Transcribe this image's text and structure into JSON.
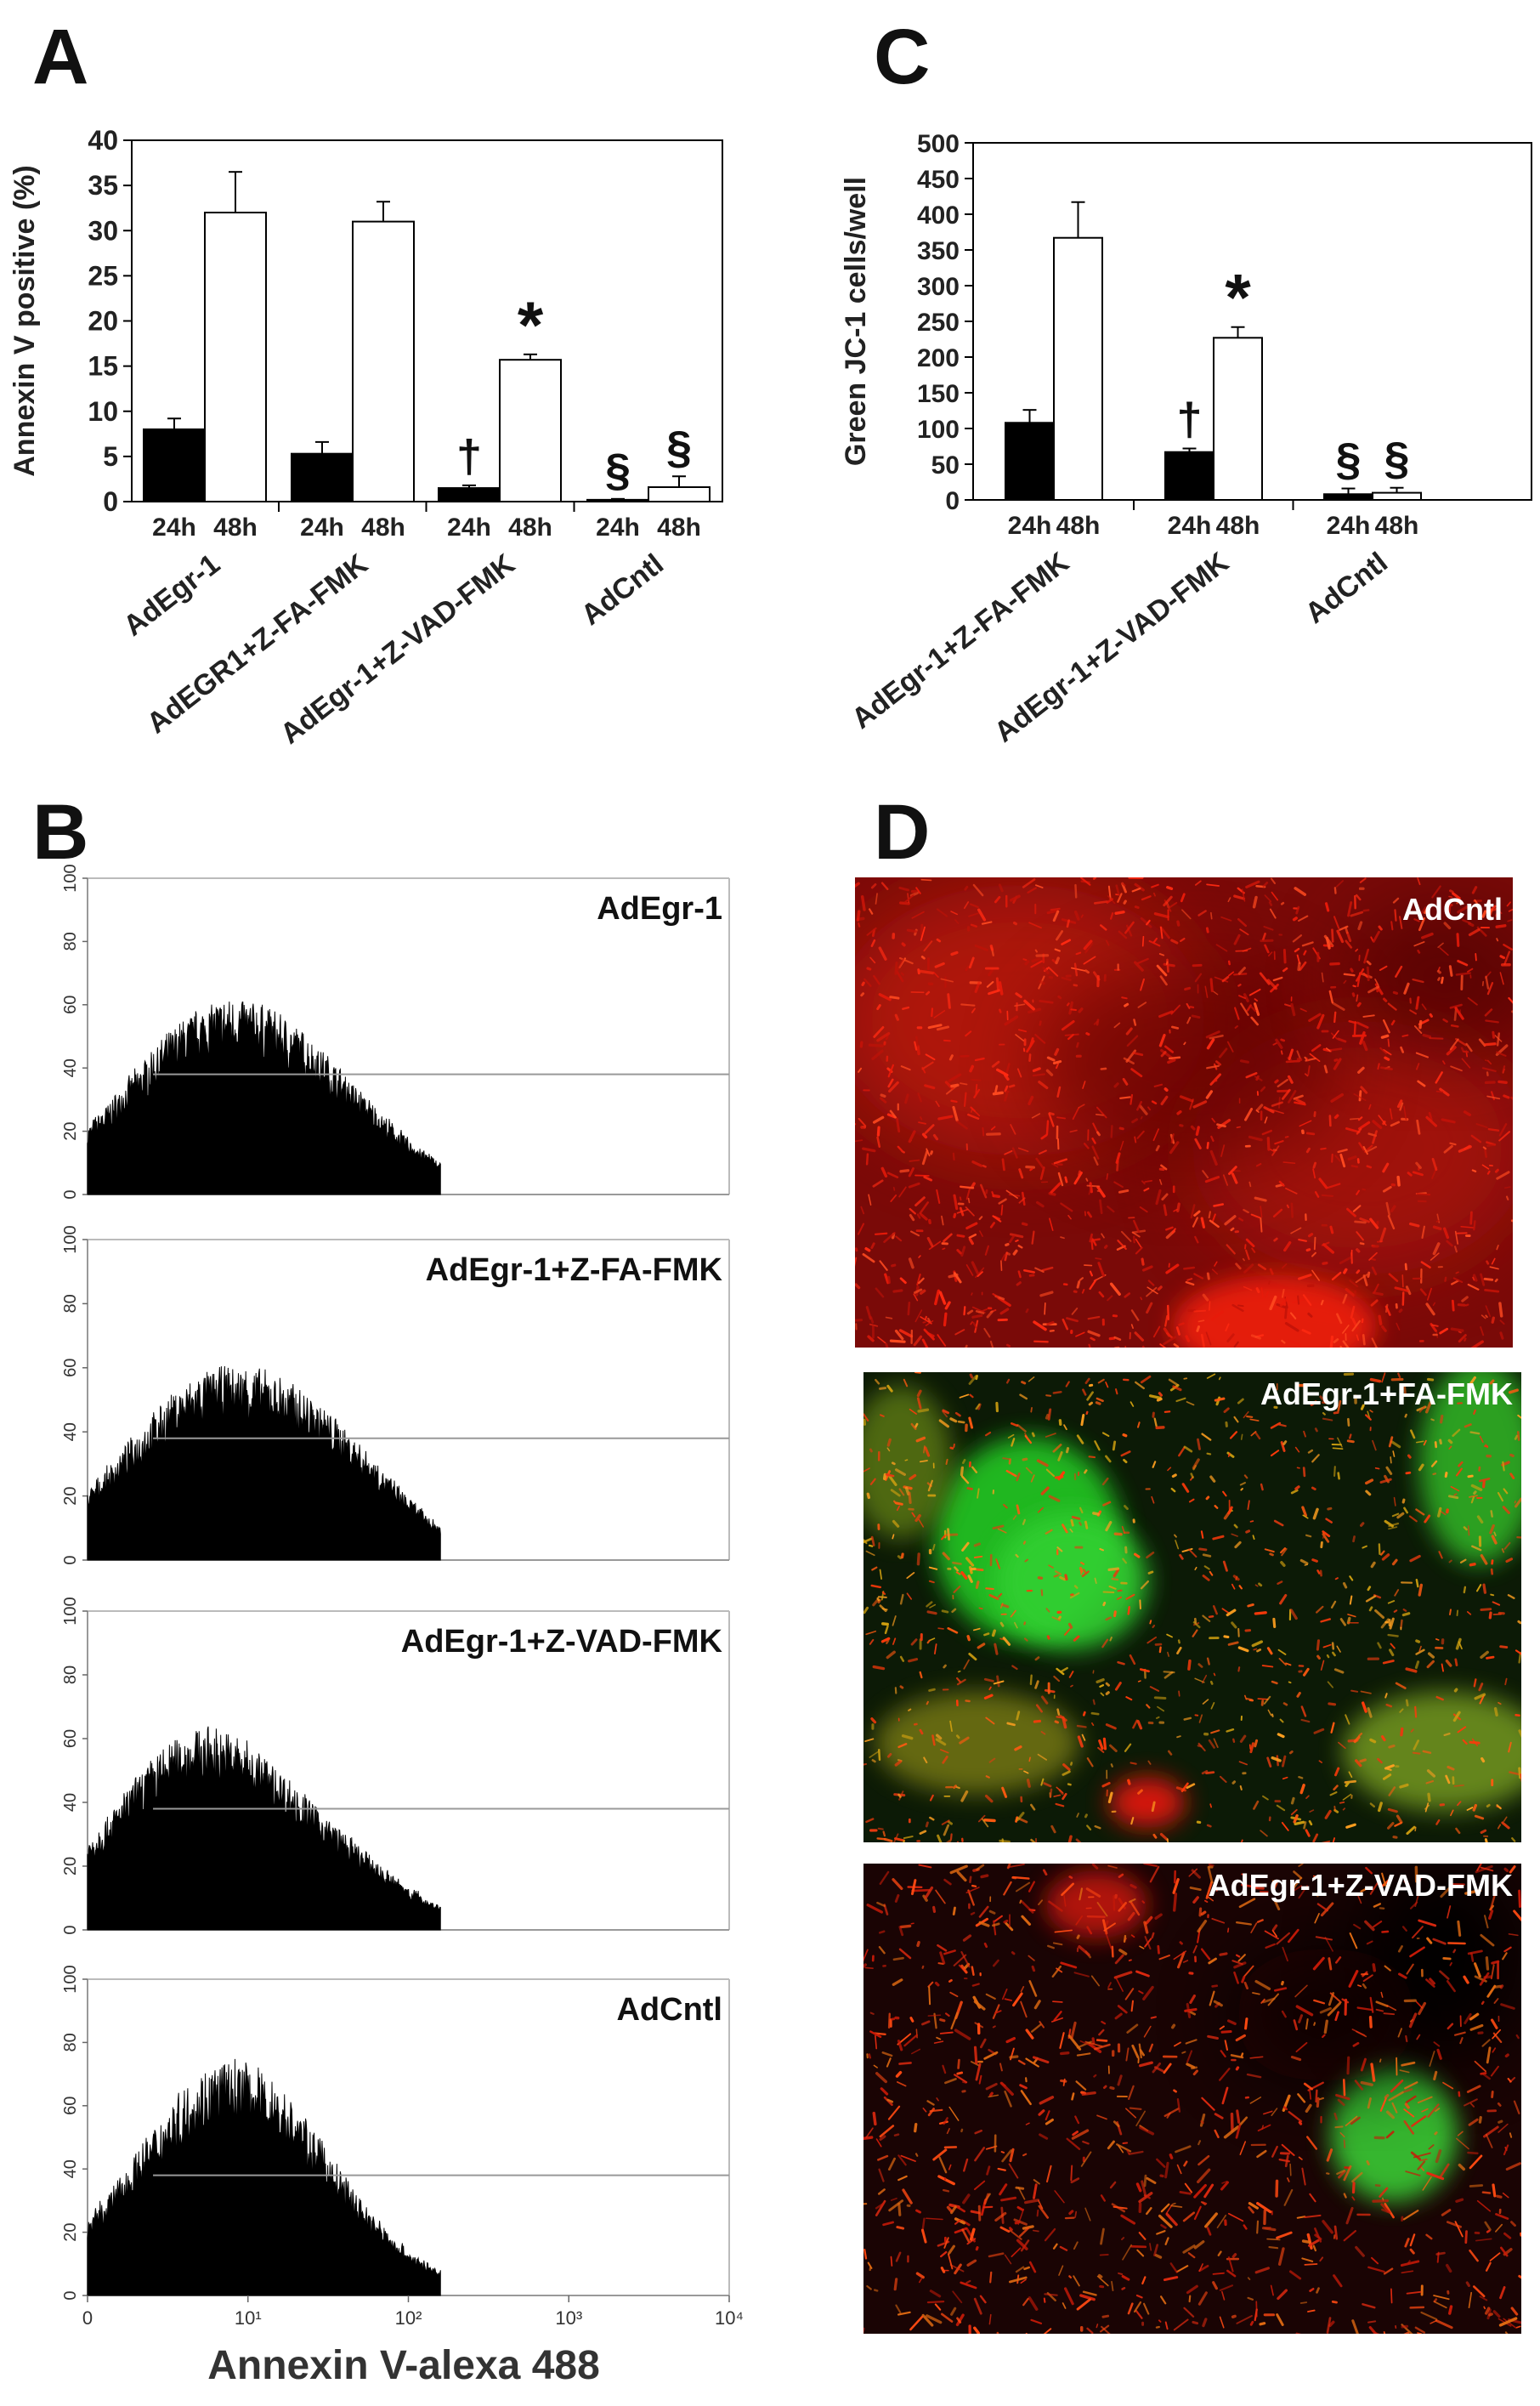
{
  "panels": {
    "A": "A",
    "B": "B",
    "C": "C",
    "D": "D"
  },
  "chart_data": [
    {
      "id": "A",
      "type": "bar",
      "ylabel": "Annexin V positive (%)",
      "ylim": [
        0,
        40
      ],
      "yticks": [
        0,
        5,
        10,
        15,
        20,
        25,
        30,
        35,
        40
      ],
      "groups": [
        "AdEgr-1",
        "AdEGR1+Z-FA-FMK",
        "AdEgr-1+Z-VAD-FMK",
        "AdCntl"
      ],
      "bar_labels": [
        "24h",
        "48h"
      ],
      "series": [
        {
          "name": "24h",
          "color": "#000000",
          "values": [
            8.0,
            5.3,
            1.5,
            0.2
          ],
          "errors": [
            1.2,
            1.3,
            0.3,
            0.1
          ]
        },
        {
          "name": "48h",
          "color": "#ffffff",
          "values": [
            32.0,
            31.0,
            15.7,
            1.6
          ],
          "errors": [
            4.5,
            2.2,
            0.6,
            1.2
          ]
        }
      ],
      "annotations": [
        {
          "group": 2,
          "series": 0,
          "text": "†"
        },
        {
          "group": 2,
          "series": 1,
          "text": "*"
        },
        {
          "group": 3,
          "series": 0,
          "text": "§"
        },
        {
          "group": 3,
          "series": 1,
          "text": "§"
        }
      ]
    },
    {
      "id": "C",
      "type": "bar",
      "ylabel": "Green JC-1 cells/well",
      "ylim": [
        0,
        500
      ],
      "yticks": [
        0,
        50,
        100,
        150,
        200,
        250,
        300,
        350,
        400,
        450,
        500
      ],
      "groups": [
        "AdEgr-1+Z-FA-FMK",
        "AdEgr-1+Z-VAD-FMK",
        "AdCntl"
      ],
      "bar_labels": [
        "24h",
        "48h"
      ],
      "series": [
        {
          "name": "24h",
          "color": "#000000",
          "values": [
            108,
            67,
            8
          ],
          "errors": [
            18,
            5,
            8
          ]
        },
        {
          "name": "48h",
          "color": "#ffffff",
          "values": [
            367,
            227,
            10
          ],
          "errors": [
            50,
            15,
            7
          ]
        }
      ],
      "annotations": [
        {
          "group": 1,
          "series": 0,
          "text": "†"
        },
        {
          "group": 1,
          "series": 1,
          "text": "*"
        },
        {
          "group": 2,
          "series": 0,
          "text": "§"
        },
        {
          "group": 2,
          "series": 1,
          "text": "§"
        }
      ]
    },
    {
      "id": "B",
      "type": "area",
      "xlabel": "Annexin V-alexa 488",
      "xscale": "log",
      "xticks": [
        "0",
        "10¹",
        "10²",
        "10³",
        "10⁴"
      ],
      "yticks": [
        0,
        20,
        40,
        60,
        80,
        100
      ],
      "ylim": [
        0,
        100
      ],
      "histograms": [
        {
          "label": "AdEgr-1",
          "gate_y": 38,
          "peaks": [
            {
              "x": 5.5,
              "h": 44,
              "w": 0.55
            },
            {
              "x": 30,
              "h": 20,
              "w": 0.5
            }
          ]
        },
        {
          "label": "AdEgr-1+Z-FA-FMK",
          "gate_y": 38,
          "peaks": [
            {
              "x": 5.5,
              "h": 45,
              "w": 0.55
            },
            {
              "x": 35,
              "h": 22,
              "w": 0.45
            }
          ]
        },
        {
          "label": "AdEgr-1+Z-VAD-FMK",
          "gate_y": 38,
          "peaks": [
            {
              "x": 5,
              "h": 52,
              "w": 0.55
            },
            {
              "x": 40,
              "h": 12,
              "w": 0.45
            }
          ]
        },
        {
          "label": "AdCntl",
          "gate_y": 38,
          "peaks": [
            {
              "x": 8,
              "h": 63,
              "w": 0.6
            }
          ]
        }
      ]
    }
  ],
  "micrographs": [
    {
      "label": "AdCntl",
      "style": "red"
    },
    {
      "label": "AdEgr-1+FA-FMK",
      "style": "mixed"
    },
    {
      "label": "AdEgr-1+Z-VAD-FMK",
      "style": "red-green"
    }
  ]
}
